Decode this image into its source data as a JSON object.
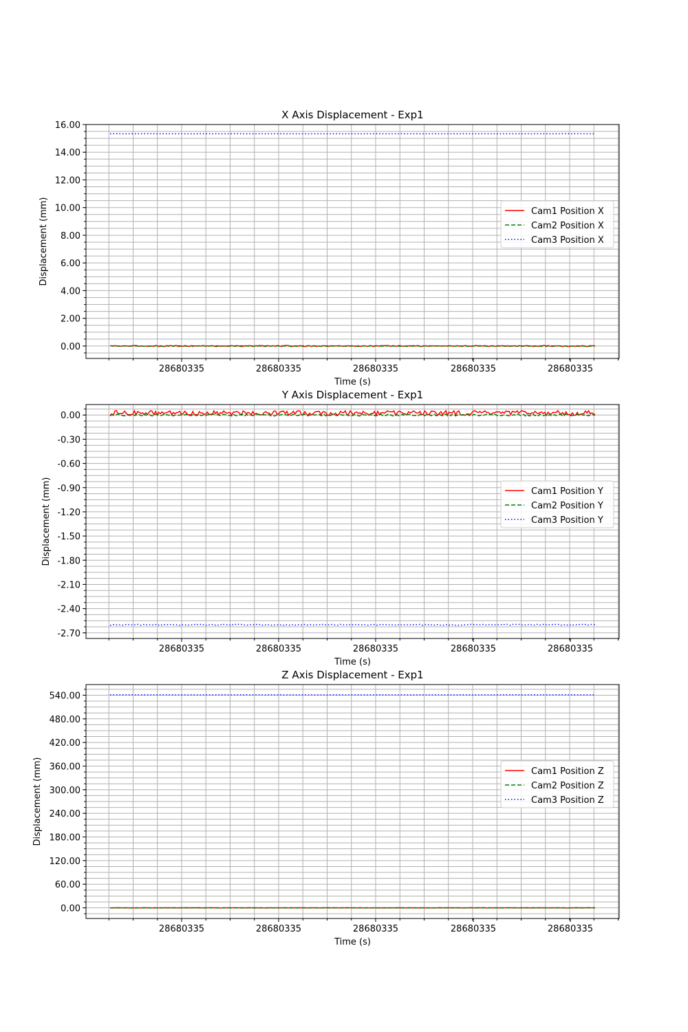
{
  "chart_data": [
    {
      "type": "line",
      "title": "X Axis Displacement - Exp1",
      "xlabel": "Time (s)",
      "ylabel": "Displacement (mm)",
      "ylim": [
        -0.9,
        16.0
      ],
      "ytick_values": [
        0,
        2,
        4,
        6,
        8,
        10,
        12,
        14,
        16
      ],
      "ytick_labels": [
        "0.00",
        "2.00",
        "4.00",
        "6.00",
        "8.00",
        "10.00",
        "12.00",
        "14.00",
        "16.00"
      ],
      "xtick_labels": [
        "28680335",
        "28680335",
        "28680335",
        "28680335",
        "28680335"
      ],
      "grid": true,
      "legend_position": "center-right",
      "series": [
        {
          "name": "Cam1 Position X",
          "color": "#ff0000",
          "style": "solid",
          "base": 0.0,
          "noise": 0.04
        },
        {
          "name": "Cam2 Position X",
          "color": "#008000",
          "style": "dashed",
          "base": 0.0,
          "noise": 0.02
        },
        {
          "name": "Cam3 Position X",
          "color": "#0000ff",
          "style": "dotted",
          "base": 15.33,
          "noise": 0.005
        }
      ]
    },
    {
      "type": "line",
      "title": "Y Axis Displacement - Exp1",
      "xlabel": "Time (s)",
      "ylabel": "Displacement (mm)",
      "ylim": [
        -2.77,
        0.13
      ],
      "ytick_values": [
        0,
        -0.3,
        -0.6,
        -0.9,
        -1.2,
        -1.5,
        -1.8,
        -2.1,
        -2.4,
        -2.7
      ],
      "ytick_labels": [
        "0.00",
        "-0.30",
        "-0.60",
        "-0.90",
        "-1.20",
        "-1.50",
        "-1.80",
        "-2.10",
        "-2.40",
        "-2.70"
      ],
      "xtick_labels": [
        "28680335",
        "28680335",
        "28680335",
        "28680335",
        "28680335"
      ],
      "grid": true,
      "legend_position": "center-right",
      "series": [
        {
          "name": "Cam1 Position Y",
          "color": "#ff0000",
          "style": "solid",
          "base": 0.025,
          "noise": 0.03
        },
        {
          "name": "Cam2 Position Y",
          "color": "#008000",
          "style": "dashed",
          "base": 0.0,
          "noise": 0.012
        },
        {
          "name": "Cam3 Position Y",
          "color": "#0000ff",
          "style": "dotted",
          "base": -2.6,
          "noise": 0.006
        }
      ]
    },
    {
      "type": "line",
      "title": "Z Axis Displacement - Exp1",
      "xlabel": "Time (s)",
      "ylabel": "Displacement (mm)",
      "ylim": [
        -27,
        567
      ],
      "ytick_values": [
        0,
        60,
        120,
        180,
        240,
        300,
        360,
        420,
        480,
        540
      ],
      "ytick_labels": [
        "0.00",
        "60.00",
        "120.00",
        "180.00",
        "240.00",
        "300.00",
        "360.00",
        "420.00",
        "480.00",
        "540.00"
      ],
      "xtick_labels": [
        "28680335",
        "28680335",
        "28680335",
        "28680335",
        "28680335"
      ],
      "grid": true,
      "legend_position": "center-right",
      "series": [
        {
          "name": "Cam1 Position Z",
          "color": "#ff0000",
          "style": "solid",
          "base": 0.0,
          "noise": 0.3
        },
        {
          "name": "Cam2 Position Z",
          "color": "#008000",
          "style": "dashed",
          "base": 0.0,
          "noise": 0.2
        },
        {
          "name": "Cam3 Position Z",
          "color": "#0000ff",
          "style": "dotted",
          "base": 541.0,
          "noise": 0.2
        }
      ]
    }
  ]
}
